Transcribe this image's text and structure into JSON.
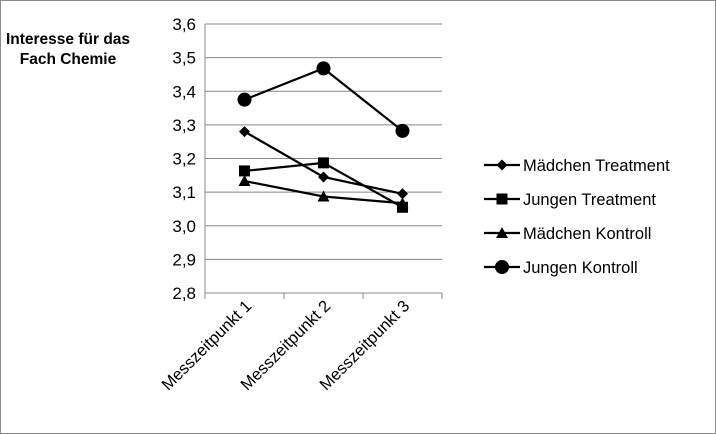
{
  "chart_data": {
    "type": "line",
    "title": "",
    "xlabel": "",
    "ylabel": "Interesse für das Fach Chemie",
    "categories": [
      "Messzeitpunkt 1",
      "Messzeitpunkt 2",
      "Messzeitpunkt 3"
    ],
    "ylim": [
      2.8,
      3.6
    ],
    "yticks": [
      "3,6",
      "3,5",
      "3,4",
      "3,3",
      "3,2",
      "3,1",
      "3,0",
      "2,9",
      "2,8"
    ],
    "grid": "horizontal",
    "legend_position": "right",
    "series": [
      {
        "name": "Mädchen Treatment",
        "marker": "diamond",
        "color": "#000000",
        "values": [
          3.28,
          3.145,
          3.095
        ]
      },
      {
        "name": "Jungen Treatment",
        "marker": "square",
        "color": "#000000",
        "values": [
          3.163,
          3.187,
          3.055
        ]
      },
      {
        "name": "Mädchen Kontroll",
        "marker": "triangle",
        "color": "#000000",
        "values": [
          3.133,
          3.087,
          3.067
        ]
      },
      {
        "name": "Jungen Kontroll",
        "marker": "circle",
        "color": "#000000",
        "values": [
          3.375,
          3.468,
          3.282
        ]
      }
    ]
  }
}
